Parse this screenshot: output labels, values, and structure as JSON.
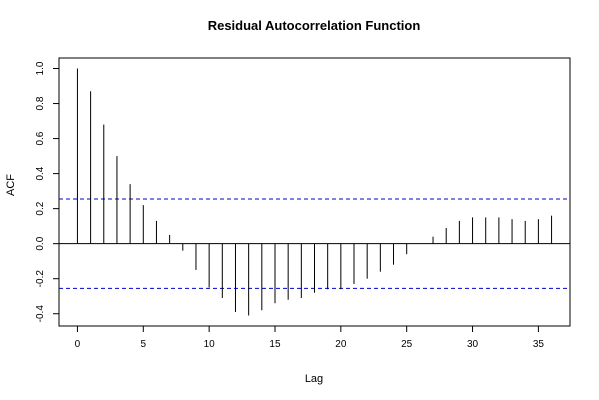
{
  "chart_data": {
    "type": "bar",
    "title": "Residual Autocorrelation Function",
    "xlabel": "Lag",
    "ylabel": "ACF",
    "xlim": [
      -1.4,
      37.4
    ],
    "ylim": [
      -0.47,
      1.06
    ],
    "x_ticks": [
      0,
      5,
      10,
      15,
      20,
      25,
      30,
      35
    ],
    "x_tick_labels": [
      "0",
      "5",
      "10",
      "15",
      "20",
      "25",
      "30",
      "35"
    ],
    "y_ticks": [
      -0.4,
      -0.2,
      0.0,
      0.2,
      0.4,
      0.6,
      0.8,
      1.0
    ],
    "y_tick_labels": [
      "-0.4",
      "-0.2",
      "0.0",
      "0.2",
      "0.4",
      "0.6",
      "0.8",
      "1.0"
    ],
    "confidence_bounds": [
      0.255,
      -0.255
    ],
    "grid": false,
    "lags": [
      0,
      1,
      2,
      3,
      4,
      5,
      6,
      7,
      8,
      9,
      10,
      11,
      12,
      13,
      14,
      15,
      16,
      17,
      18,
      19,
      20,
      21,
      22,
      23,
      24,
      25,
      26,
      27,
      28,
      29,
      30,
      31,
      32,
      33,
      34,
      35,
      36
    ],
    "values": [
      1.0,
      0.87,
      0.68,
      0.5,
      0.34,
      0.22,
      0.13,
      0.05,
      -0.04,
      -0.15,
      -0.25,
      -0.31,
      -0.39,
      -0.41,
      -0.38,
      -0.34,
      -0.32,
      -0.31,
      -0.28,
      -0.26,
      -0.26,
      -0.23,
      -0.2,
      -0.16,
      -0.12,
      -0.06,
      0.0,
      0.04,
      0.09,
      0.13,
      0.15,
      0.15,
      0.15,
      0.14,
      0.13,
      0.14,
      0.16
    ],
    "colors": {
      "bars": "#000000",
      "bounds": "#0000cc",
      "zero_line": "#000000",
      "frame": "#000000"
    }
  }
}
